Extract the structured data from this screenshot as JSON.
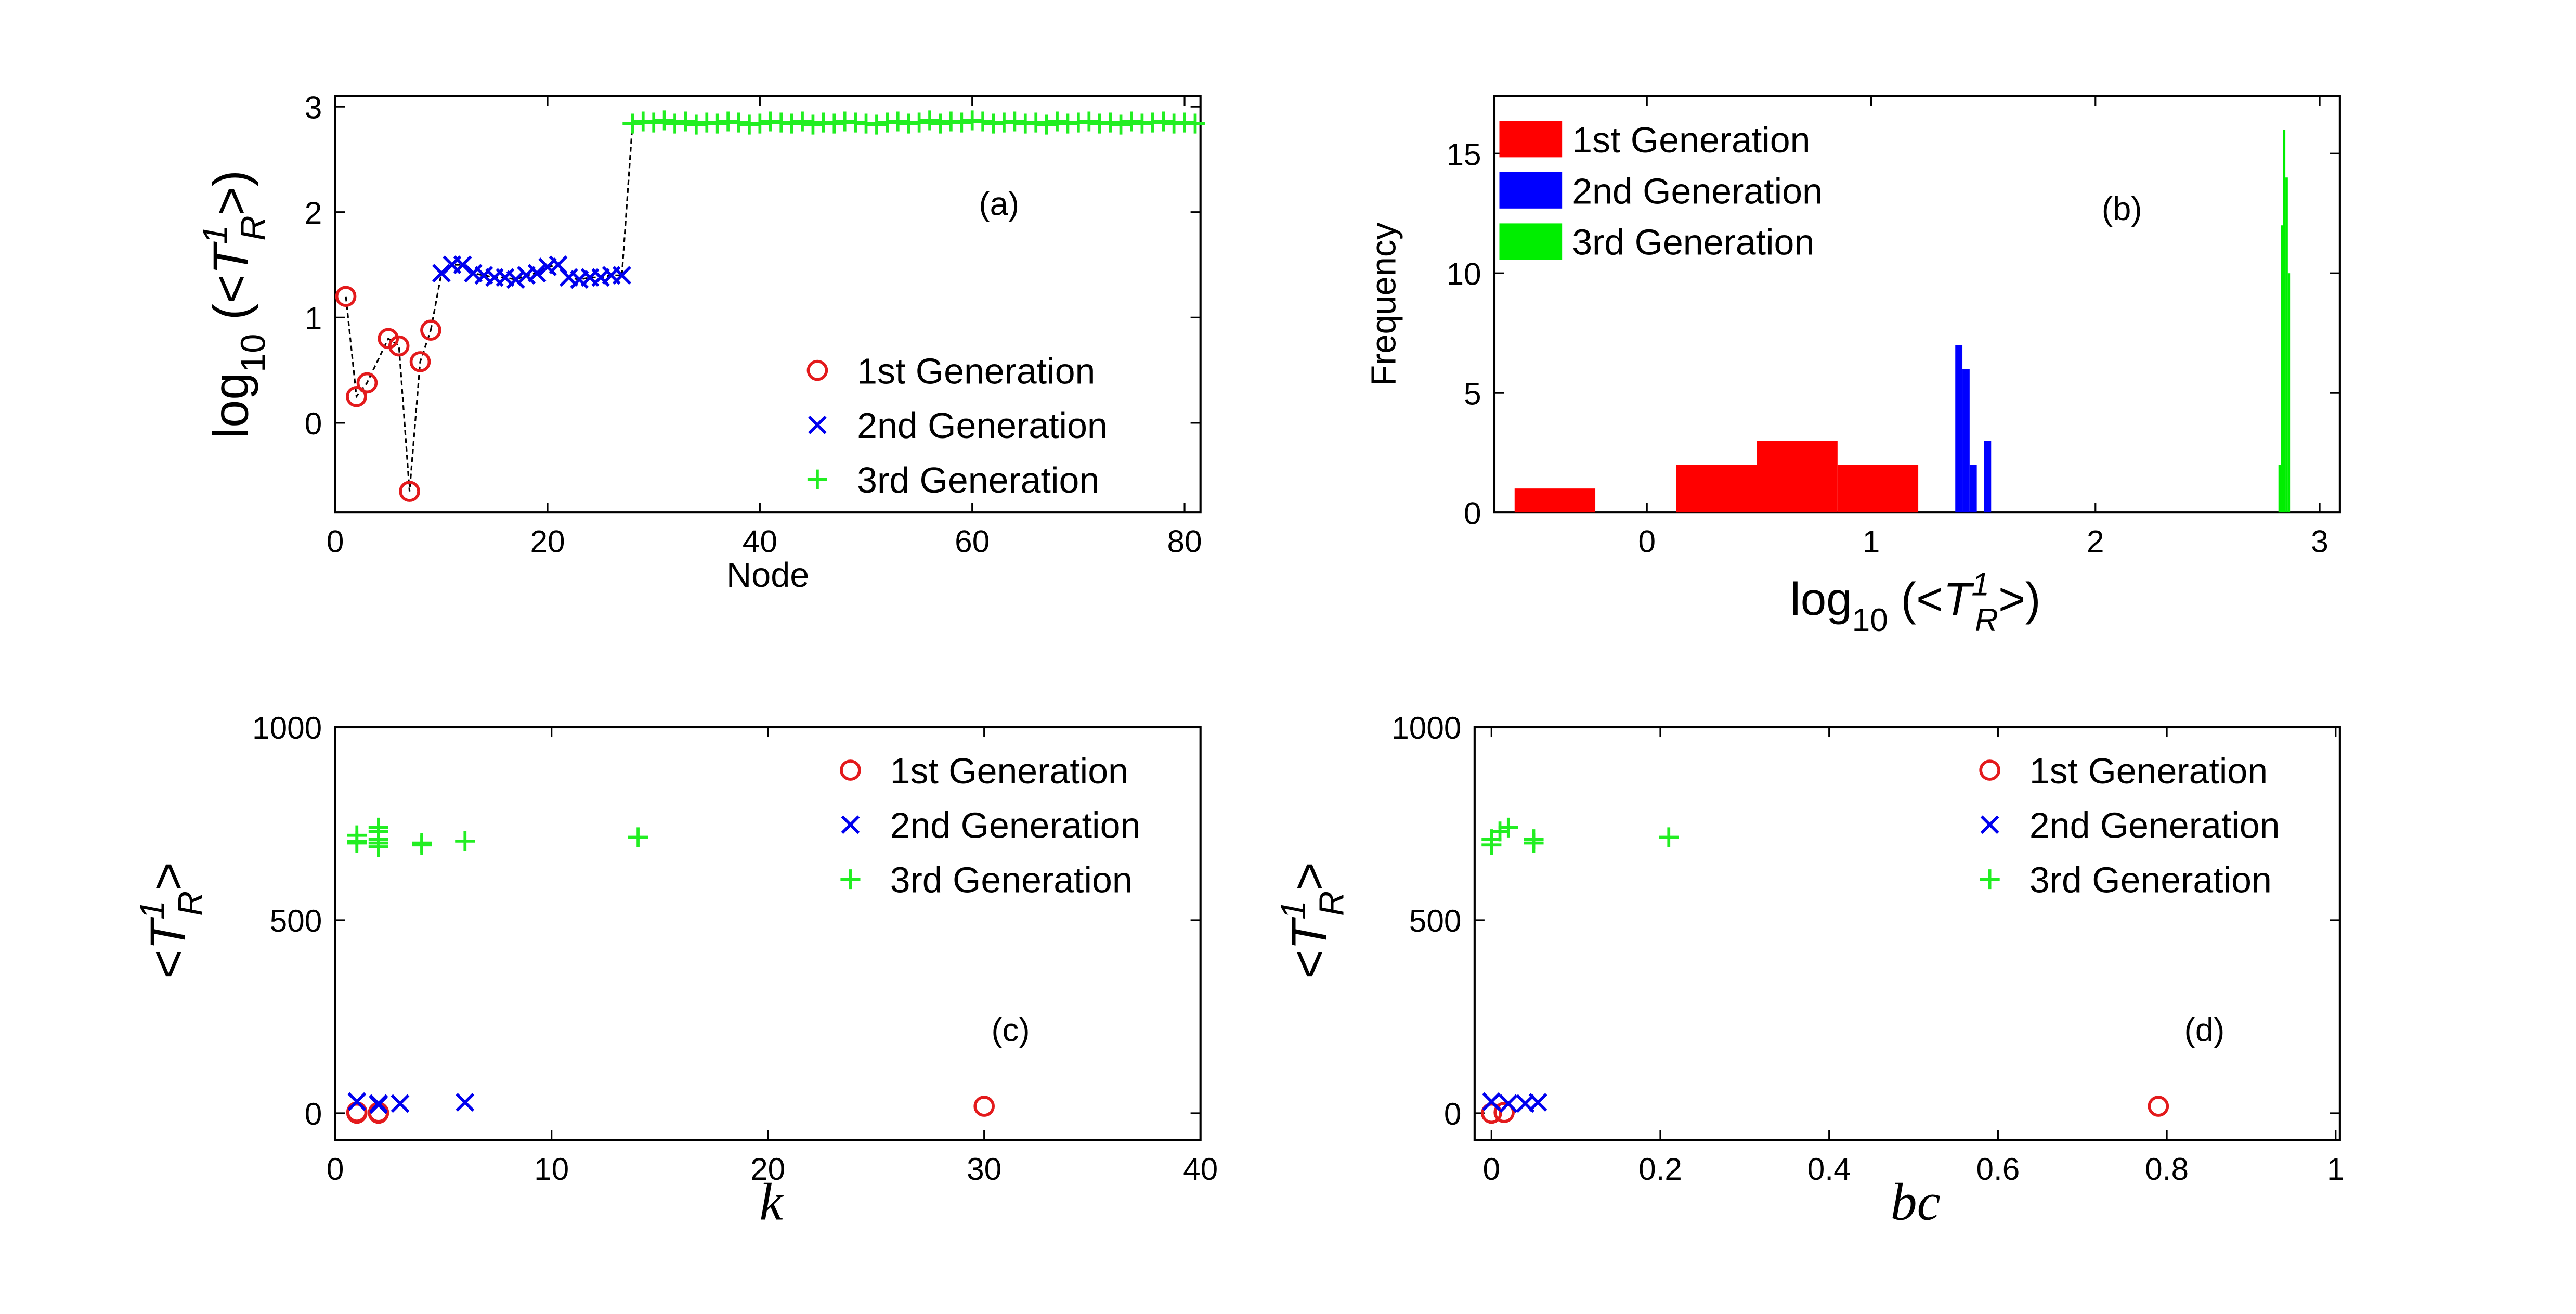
{
  "chart_data": [
    {
      "type": "line",
      "annotation": "(a)",
      "xlabel": "Node",
      "ylabel": [
        "log",
        "10",
        " (<",
        "T",
        "1",
        "R",
        ">)"
      ],
      "xlim": [
        0,
        81.5
      ],
      "ylim": [
        -0.85,
        3.1
      ],
      "xticks": [
        0,
        20,
        40,
        60,
        80
      ],
      "yticks": [
        0,
        1,
        2,
        3
      ],
      "legend": "lower right",
      "line_color": "#000000",
      "series": [
        {
          "name": "1st Generation",
          "color": "#e31a1c",
          "marker": "o",
          "x": [
            1,
            2,
            3,
            5,
            6,
            7,
            8,
            9
          ],
          "values": [
            1.2,
            0.25,
            0.38,
            0.8,
            0.73,
            -0.65,
            0.58,
            0.88
          ]
        },
        {
          "name": "2nd Generation",
          "color": "#0000ee",
          "marker": "x",
          "x": [
            10,
            11,
            12,
            13,
            14,
            15,
            16,
            17,
            18,
            19,
            20,
            21,
            22,
            23,
            24,
            25,
            26,
            27
          ],
          "values": [
            1.42,
            1.5,
            1.5,
            1.42,
            1.4,
            1.38,
            1.38,
            1.36,
            1.4,
            1.42,
            1.48,
            1.5,
            1.38,
            1.36,
            1.38,
            1.38,
            1.4,
            1.4
          ]
        },
        {
          "name": "3rd Generation",
          "color": "#22ee22",
          "marker": "+",
          "x": [
            28,
            29,
            30,
            31,
            32,
            33,
            34,
            35,
            36,
            37,
            38,
            39,
            40,
            41,
            42,
            43,
            44,
            45,
            46,
            47,
            48,
            49,
            50,
            51,
            52,
            53,
            54,
            55,
            56,
            57,
            58,
            59,
            60,
            61,
            62,
            63,
            64,
            65,
            66,
            67,
            68,
            69,
            70,
            71,
            72,
            73,
            74,
            75,
            76,
            77,
            78,
            79,
            80,
            81
          ],
          "values": [
            2.84,
            2.86,
            2.85,
            2.87,
            2.84,
            2.86,
            2.83,
            2.85,
            2.84,
            2.86,
            2.85,
            2.83,
            2.84,
            2.86,
            2.85,
            2.84,
            2.86,
            2.83,
            2.85,
            2.84,
            2.86,
            2.85,
            2.84,
            2.83,
            2.85,
            2.86,
            2.84,
            2.85,
            2.87,
            2.84,
            2.86,
            2.85,
            2.87,
            2.86,
            2.84,
            2.85,
            2.86,
            2.84,
            2.85,
            2.83,
            2.86,
            2.84,
            2.85,
            2.86,
            2.84,
            2.85,
            2.83,
            2.86,
            2.84,
            2.85,
            2.86,
            2.84,
            2.85,
            2.84
          ]
        }
      ]
    },
    {
      "type": "histogram",
      "annotation": "(b)",
      "xlabel": [
        "log",
        "10",
        " (<",
        "T",
        "1",
        "R",
        ">)"
      ],
      "ylabel": "Frequency",
      "xlim": [
        -0.68,
        3.09
      ],
      "ylim": [
        0,
        17.4
      ],
      "xticks": [
        0,
        1,
        2,
        3
      ],
      "yticks": [
        0,
        5,
        10,
        15
      ],
      "legend": "upper left",
      "series": [
        {
          "name": "1st Generation",
          "color": "#ff0000",
          "bins": [
            -0.59,
            -0.23,
            0.13,
            0.49,
            0.85,
            1.21
          ],
          "values": [
            1,
            0,
            2,
            3,
            2
          ]
        },
        {
          "name": "2nd Generation",
          "color": "#0000ff",
          "bins": [
            1.375,
            1.407,
            1.439,
            1.471,
            1.503,
            1.535
          ],
          "values": [
            7,
            6,
            2,
            0,
            3
          ]
        },
        {
          "name": "3rd Generation",
          "color": "#00ee00",
          "bins": [
            2.816,
            2.826,
            2.837,
            2.847,
            2.858,
            2.868
          ],
          "values": [
            2,
            12,
            16,
            14,
            10
          ]
        }
      ]
    },
    {
      "type": "scatter",
      "annotation": "(c)",
      "xlabel": "k",
      "ylabel": [
        "<",
        "T",
        "1",
        "R",
        ">"
      ],
      "xlim": [
        0,
        40
      ],
      "ylim": [
        -70,
        1000
      ],
      "xticks": [
        0,
        10,
        20,
        30,
        40
      ],
      "yticks": [
        0,
        500,
        1000
      ],
      "legend": "upper right",
      "series": [
        {
          "name": "1st Generation",
          "color": "#e31a1c",
          "marker": "o",
          "x": [
            1,
            1,
            2,
            2,
            30
          ],
          "values": [
            3,
            0,
            2,
            0,
            18
          ]
        },
        {
          "name": "2nd Generation",
          "color": "#0000ee",
          "marker": "x",
          "x": [
            1,
            2,
            2,
            3,
            6
          ],
          "values": [
            30,
            25,
            22,
            25,
            28
          ]
        },
        {
          "name": "3rd Generation",
          "color": "#22ee22",
          "marker": "+",
          "x": [
            1,
            1,
            1,
            2,
            2,
            2,
            2,
            2,
            4,
            4,
            6,
            14
          ],
          "values": [
            705,
            700,
            720,
            710,
            730,
            700,
            740,
            690,
            700,
            695,
            705,
            715
          ]
        }
      ]
    },
    {
      "type": "scatter",
      "annotation": "(d)",
      "xlabel": "bc",
      "ylabel": [
        "<",
        "T",
        "1",
        "R",
        ">"
      ],
      "xlim": [
        -0.02,
        1.005
      ],
      "ylim": [
        -70,
        1000
      ],
      "xticks": [
        0,
        0.2,
        0.4,
        0.6,
        0.8,
        1
      ],
      "yticks": [
        0,
        500,
        1000
      ],
      "legend": "upper right",
      "series": [
        {
          "name": "1st Generation",
          "color": "#e31a1c",
          "marker": "o",
          "x": [
            0,
            0.015,
            0.79
          ],
          "values": [
            0,
            2,
            18
          ]
        },
        {
          "name": "2nd Generation",
          "color": "#0000ee",
          "marker": "x",
          "x": [
            0,
            0.02,
            0.04,
            0.055
          ],
          "values": [
            30,
            25,
            25,
            28
          ]
        },
        {
          "name": "3rd Generation",
          "color": "#22ee22",
          "marker": "+",
          "x": [
            0,
            0,
            0.01,
            0.02,
            0.05,
            0.05,
            0.21
          ],
          "values": [
            710,
            695,
            730,
            740,
            700,
            710,
            715
          ]
        }
      ]
    }
  ]
}
